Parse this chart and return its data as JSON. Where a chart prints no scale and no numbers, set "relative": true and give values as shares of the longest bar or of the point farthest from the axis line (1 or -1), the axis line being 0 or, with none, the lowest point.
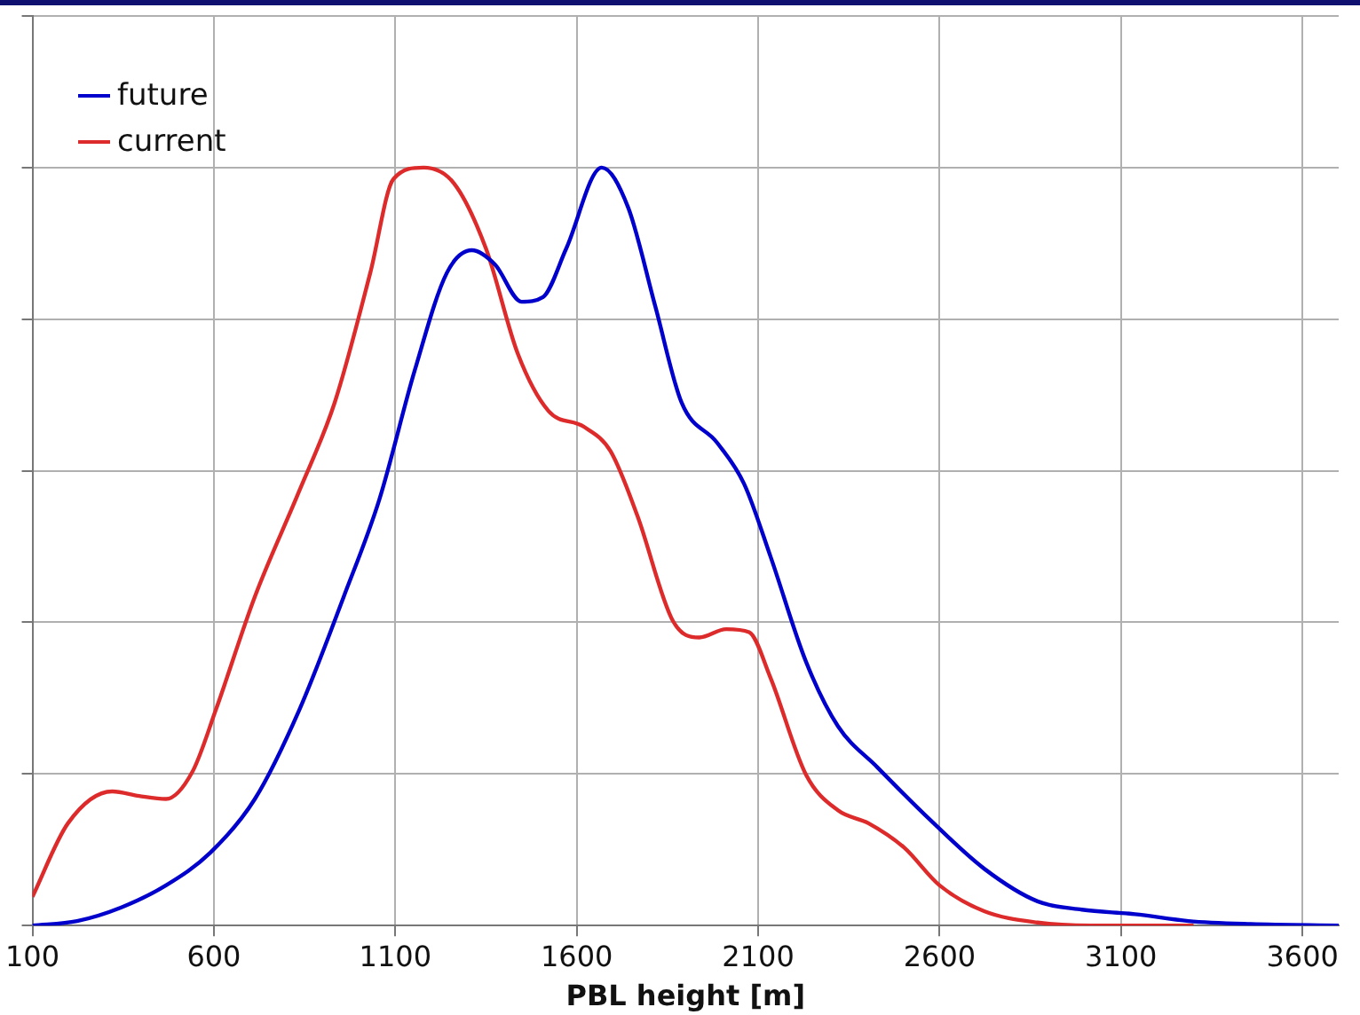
{
  "chart_data": {
    "type": "line",
    "xlabel": "PBL height [m]",
    "relative": true,
    "xlim": [
      100,
      3700
    ],
    "xticks": [
      100,
      600,
      1100,
      1600,
      2100,
      2600,
      3100,
      3600
    ],
    "grid": true,
    "legend": "top left",
    "marker": "none",
    "line_style": "solid",
    "tick_labels": "x",
    "series": [
      {
        "name": "future",
        "color": "#0000cc",
        "x": [
          100,
          223,
          345,
          468,
          590,
          713,
          835,
          958,
          1056,
          1154,
          1242,
          1311,
          1375,
          1448,
          1507,
          1571,
          1669,
          1742,
          1816,
          1889,
          1987,
          2061,
          2134,
          2232,
          2320,
          2428,
          2575,
          2723,
          2870,
          2992,
          3139,
          3286,
          3458,
          3700
        ],
        "values": [
          0,
          0.006,
          0.024,
          0.053,
          0.096,
          0.167,
          0.284,
          0.434,
          0.562,
          0.733,
          0.861,
          0.891,
          0.872,
          0.823,
          0.829,
          0.893,
          1,
          0.947,
          0.818,
          0.69,
          0.637,
          0.583,
          0.487,
          0.348,
          0.263,
          0.209,
          0.139,
          0.075,
          0.032,
          0.021,
          0.015,
          0.006,
          0.002,
          0
        ]
      },
      {
        "name": "current",
        "color": "#dd2b2b",
        "x": [
          100,
          198,
          320,
          394,
          468,
          541,
          605,
          713,
          835,
          933,
          1031,
          1095,
          1178,
          1262,
          1350,
          1438,
          1522,
          1620,
          1693,
          1767,
          1865,
          1938,
          2012,
          2075,
          2134,
          2232,
          2320,
          2404,
          2502,
          2600,
          2723,
          2870,
          3017,
          3300
        ],
        "values": [
          0.038,
          0.135,
          0.177,
          0.171,
          0.167,
          0.203,
          0.284,
          0.434,
          0.573,
          0.69,
          0.861,
          0.985,
          1,
          0.979,
          0.893,
          0.754,
          0.679,
          0.658,
          0.626,
          0.541,
          0.402,
          0.38,
          0.391,
          0.387,
          0.327,
          0.199,
          0.152,
          0.135,
          0.103,
          0.053,
          0.019,
          0.004,
          0,
          0
        ]
      }
    ]
  }
}
